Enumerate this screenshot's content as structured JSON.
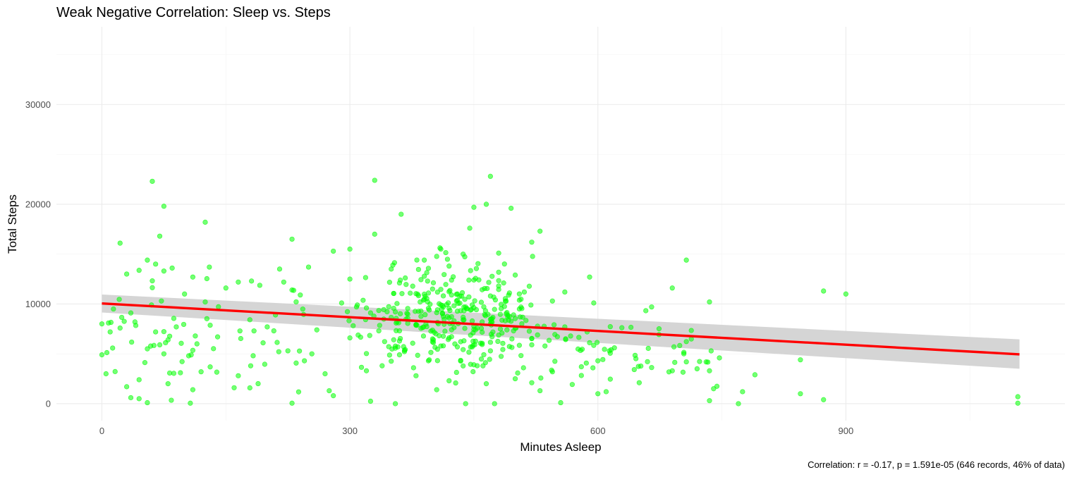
{
  "chart_data": {
    "type": "scatter",
    "title": "Weak Negative Correlation: Sleep vs. Steps",
    "xlabel": "Minutes Asleep",
    "ylabel": "Total Steps",
    "caption": "Correlation: r = -0.17, p = 1.591e-05 (646 records, 46% of data)",
    "xlim": [
      -55,
      1165
    ],
    "ylim": [
      -1700,
      37800
    ],
    "x_ticks": [
      0,
      300,
      600,
      900
    ],
    "x_tick_labels": [
      "0",
      "300",
      "600",
      "900"
    ],
    "y_ticks": [
      0,
      10000,
      20000,
      30000
    ],
    "y_tick_labels": [
      "0",
      "10000",
      "20000",
      "30000"
    ],
    "grid": true,
    "legend": "none",
    "colors": {
      "points": "#00ff00",
      "trend_line": "#ff0000",
      "confidence_band": "#d3d3d3"
    },
    "trend_line": {
      "method": "linear",
      "start": {
        "x": 0,
        "y": 10050
      },
      "end": {
        "x": 1110,
        "y": 4950
      },
      "band_start": [
        9150,
        10950
      ],
      "band_end": [
        3500,
        6450
      ]
    },
    "highlighted_points": [
      {
        "x": 61,
        "y": 22300
      },
      {
        "x": 330,
        "y": 22400
      },
      {
        "x": 470,
        "y": 22800
      },
      {
        "x": 465,
        "y": 20000
      },
      {
        "x": 75,
        "y": 19800
      },
      {
        "x": 495,
        "y": 19600
      },
      {
        "x": 450,
        "y": 19700
      },
      {
        "x": 362,
        "y": 19000
      },
      {
        "x": 125,
        "y": 18200
      },
      {
        "x": 22,
        "y": 16100
      },
      {
        "x": 230,
        "y": 16500
      },
      {
        "x": 707,
        "y": 14400
      },
      {
        "x": 873,
        "y": 11300
      },
      {
        "x": 900,
        "y": 11000
      },
      {
        "x": 845,
        "y": 4400
      },
      {
        "x": 790,
        "y": 2900
      },
      {
        "x": 845,
        "y": 1000
      },
      {
        "x": 873,
        "y": 400
      },
      {
        "x": 770,
        "y": 0
      },
      {
        "x": 1108,
        "y": 700
      },
      {
        "x": 1108,
        "y": 50
      },
      {
        "x": 0,
        "y": 8000
      },
      {
        "x": 0,
        "y": 4900
      },
      {
        "x": 5,
        "y": 3000
      },
      {
        "x": 30,
        "y": 1700
      },
      {
        "x": 55,
        "y": 100
      },
      {
        "x": 107,
        "y": 50
      },
      {
        "x": 230,
        "y": 50
      }
    ],
    "cluster_points": [
      {
        "x": 330,
        "y": 17000
      },
      {
        "x": 445,
        "y": 17600
      },
      {
        "x": 530,
        "y": 17300
      },
      {
        "x": 280,
        "y": 15300
      },
      {
        "x": 300,
        "y": 15500
      },
      {
        "x": 410,
        "y": 15500
      },
      {
        "x": 390,
        "y": 14400
      },
      {
        "x": 480,
        "y": 15100
      },
      {
        "x": 520,
        "y": 16200
      },
      {
        "x": 350,
        "y": 13500
      },
      {
        "x": 420,
        "y": 13800
      },
      {
        "x": 300,
        "y": 12500
      },
      {
        "x": 360,
        "y": 12100
      },
      {
        "x": 450,
        "y": 12400
      },
      {
        "x": 500,
        "y": 12900
      },
      {
        "x": 400,
        "y": 11500
      },
      {
        "x": 430,
        "y": 11000
      },
      {
        "x": 470,
        "y": 10800
      },
      {
        "x": 385,
        "y": 10200
      },
      {
        "x": 410,
        "y": 9900
      },
      {
        "x": 440,
        "y": 9700
      },
      {
        "x": 290,
        "y": 10100
      },
      {
        "x": 320,
        "y": 9600
      },
      {
        "x": 355,
        "y": 9200
      },
      {
        "x": 505,
        "y": 9500
      },
      {
        "x": 545,
        "y": 10300
      },
      {
        "x": 420,
        "y": 8600
      },
      {
        "x": 460,
        "y": 8200
      },
      {
        "x": 380,
        "y": 7900
      },
      {
        "x": 335,
        "y": 7300
      },
      {
        "x": 490,
        "y": 7400
      },
      {
        "x": 560,
        "y": 7700
      },
      {
        "x": 300,
        "y": 6600
      },
      {
        "x": 400,
        "y": 6200
      },
      {
        "x": 430,
        "y": 5700
      },
      {
        "x": 470,
        "y": 5300
      },
      {
        "x": 520,
        "y": 5900
      },
      {
        "x": 360,
        "y": 4900
      },
      {
        "x": 395,
        "y": 4300
      },
      {
        "x": 450,
        "y": 3900
      },
      {
        "x": 510,
        "y": 3600
      },
      {
        "x": 545,
        "y": 3200
      },
      {
        "x": 320,
        "y": 3300
      },
      {
        "x": 380,
        "y": 2800
      },
      {
        "x": 420,
        "y": 2300
      },
      {
        "x": 465,
        "y": 2000
      },
      {
        "x": 500,
        "y": 2500
      },
      {
        "x": 530,
        "y": 1300
      },
      {
        "x": 405,
        "y": 1400
      },
      {
        "x": 440,
        "y": 0
      },
      {
        "x": 355,
        "y": 0
      },
      {
        "x": 325,
        "y": 250
      },
      {
        "x": 475,
        "y": 0
      },
      {
        "x": 555,
        "y": 100
      },
      {
        "x": 580,
        "y": 3700
      },
      {
        "x": 600,
        "y": 4300
      },
      {
        "x": 620,
        "y": 5600
      },
      {
        "x": 650,
        "y": 2100
      },
      {
        "x": 690,
        "y": 3300
      },
      {
        "x": 735,
        "y": 3300
      },
      {
        "x": 735,
        "y": 10200
      },
      {
        "x": 690,
        "y": 11600
      },
      {
        "x": 665,
        "y": 9700
      },
      {
        "x": 595,
        "y": 10100
      },
      {
        "x": 590,
        "y": 12700
      },
      {
        "x": 560,
        "y": 11200
      },
      {
        "x": 610,
        "y": 1200
      },
      {
        "x": 600,
        "y": 1000
      },
      {
        "x": 740,
        "y": 1500
      },
      {
        "x": 735,
        "y": 300
      },
      {
        "x": 775,
        "y": 1200
      },
      {
        "x": 720,
        "y": 3500
      }
    ],
    "left_points": [
      {
        "x": 10,
        "y": 7200
      },
      {
        "x": 30,
        "y": 13000
      },
      {
        "x": 35,
        "y": 9100
      },
      {
        "x": 40,
        "y": 8200
      },
      {
        "x": 45,
        "y": 2400
      },
      {
        "x": 35,
        "y": 600
      },
      {
        "x": 45,
        "y": 500
      },
      {
        "x": 55,
        "y": 14400
      },
      {
        "x": 65,
        "y": 14000
      },
      {
        "x": 70,
        "y": 16800
      },
      {
        "x": 75,
        "y": 13300
      },
      {
        "x": 85,
        "y": 13600
      },
      {
        "x": 60,
        "y": 9900
      },
      {
        "x": 72,
        "y": 10300
      },
      {
        "x": 90,
        "y": 7700
      },
      {
        "x": 65,
        "y": 7200
      },
      {
        "x": 80,
        "y": 6400
      },
      {
        "x": 55,
        "y": 5500
      },
      {
        "x": 75,
        "y": 5000
      },
      {
        "x": 95,
        "y": 3100
      },
      {
        "x": 80,
        "y": 2000
      },
      {
        "x": 110,
        "y": 1400
      },
      {
        "x": 120,
        "y": 3200
      },
      {
        "x": 105,
        "y": 4800
      },
      {
        "x": 115,
        "y": 6000
      },
      {
        "x": 100,
        "y": 11000
      },
      {
        "x": 110,
        "y": 12700
      },
      {
        "x": 130,
        "y": 13700
      },
      {
        "x": 125,
        "y": 10200
      },
      {
        "x": 140,
        "y": 6700
      },
      {
        "x": 150,
        "y": 11600
      },
      {
        "x": 165,
        "y": 12200
      },
      {
        "x": 160,
        "y": 1600
      },
      {
        "x": 165,
        "y": 2800
      },
      {
        "x": 180,
        "y": 3800
      },
      {
        "x": 195,
        "y": 6100
      },
      {
        "x": 200,
        "y": 7700
      },
      {
        "x": 210,
        "y": 8900
      },
      {
        "x": 215,
        "y": 13500
      },
      {
        "x": 220,
        "y": 12200
      },
      {
        "x": 230,
        "y": 11400
      },
      {
        "x": 240,
        "y": 10900
      },
      {
        "x": 250,
        "y": 13700
      },
      {
        "x": 260,
        "y": 7400
      },
      {
        "x": 270,
        "y": 3000
      },
      {
        "x": 245,
        "y": 4300
      },
      {
        "x": 225,
        "y": 5300
      },
      {
        "x": 275,
        "y": 1300
      },
      {
        "x": 280,
        "y": 800
      }
    ]
  }
}
